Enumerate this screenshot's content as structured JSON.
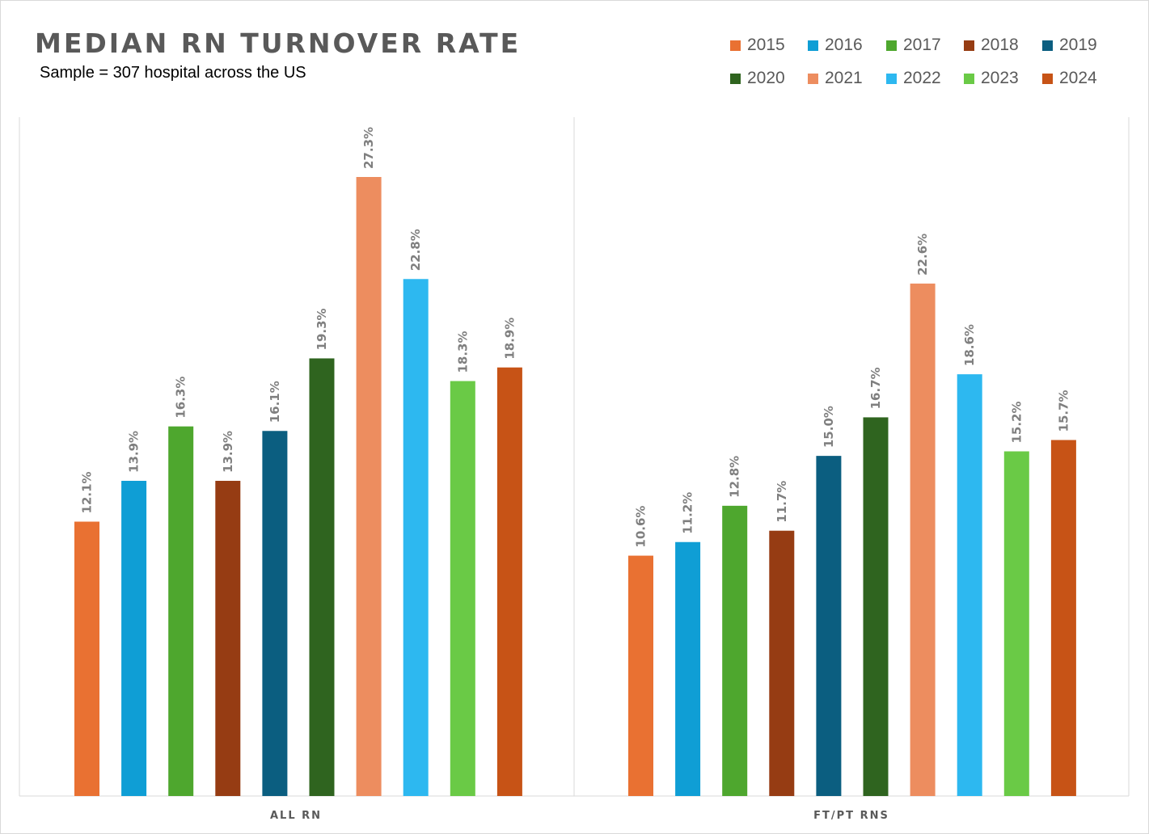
{
  "chart_data": {
    "type": "bar",
    "title": "MEDIAN RN TURNOVER RATE",
    "subtitle": "Sample = 307 hospital across the US",
    "categories": [
      "ALL RN",
      "FT/PT RNS"
    ],
    "series": [
      {
        "name": "2015",
        "color": "#E97132",
        "values": [
          12.1,
          10.6
        ],
        "labels": [
          "12.1%",
          "10.6%"
        ]
      },
      {
        "name": "2016",
        "color": "#0F9ED5",
        "values": [
          13.9,
          11.2
        ],
        "labels": [
          "13.9%",
          "11.2%"
        ]
      },
      {
        "name": "2017",
        "color": "#4EA72E",
        "values": [
          16.3,
          12.8
        ],
        "labels": [
          "16.3%",
          "12.8%"
        ]
      },
      {
        "name": "2018",
        "color": "#963C13",
        "values": [
          13.9,
          11.7
        ],
        "labels": [
          "13.9%",
          "11.7%"
        ]
      },
      {
        "name": "2019",
        "color": "#0B5E80",
        "values": [
          16.1,
          15.0
        ],
        "labels": [
          "16.1%",
          "15.0%"
        ]
      },
      {
        "name": "2020",
        "color": "#2F641F",
        "values": [
          19.3,
          16.7
        ],
        "labels": [
          "19.3%",
          "16.7%"
        ]
      },
      {
        "name": "2021",
        "color": "#ED8D5F",
        "values": [
          27.3,
          22.6
        ],
        "labels": [
          "27.3%",
          "22.6%"
        ]
      },
      {
        "name": "2022",
        "color": "#2DB8F0",
        "values": [
          22.8,
          18.6
        ],
        "labels": [
          "22.8%",
          "18.6%"
        ]
      },
      {
        "name": "2023",
        "color": "#6ACA46",
        "values": [
          18.3,
          15.2
        ],
        "labels": [
          "18.3%",
          "15.2%"
        ]
      },
      {
        "name": "2024",
        "color": "#C75316",
        "values": [
          18.9,
          15.7
        ],
        "labels": [
          "18.9%",
          "15.7%"
        ]
      }
    ],
    "ylim": [
      0,
      30
    ],
    "grid": false,
    "legend_position": "top-right"
  }
}
